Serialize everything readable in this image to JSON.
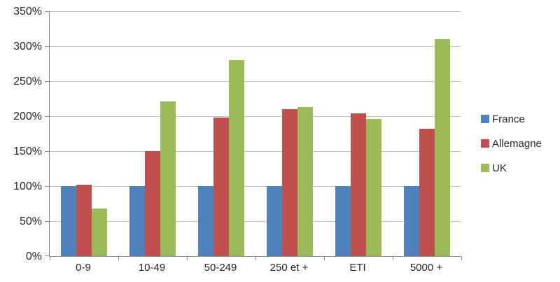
{
  "chart_data": {
    "type": "bar",
    "title": "",
    "categories": [
      "0-9",
      "10-49",
      "50-249",
      "250 et +",
      "ETI",
      "5000 +"
    ],
    "series": [
      {
        "name": "France",
        "color": "#4F81BD",
        "values": [
          100,
          100,
          100,
          100,
          100,
          100
        ]
      },
      {
        "name": "Allemagne",
        "color": "#C0504D",
        "values": [
          102,
          150,
          198,
          210,
          204,
          182
        ]
      },
      {
        "name": "UK",
        "color": "#9BBB59",
        "values": [
          68,
          221,
          280,
          213,
          196,
          310
        ]
      }
    ],
    "ylim": [
      0,
      350
    ],
    "yticks": [
      {
        "label": "0%",
        "value": 0
      },
      {
        "label": "50%",
        "value": 50
      },
      {
        "label": "100%",
        "value": 100
      },
      {
        "label": "150%",
        "value": 150
      },
      {
        "label": "200%",
        "value": 200
      },
      {
        "label": "250%",
        "value": 250
      },
      {
        "label": "300%",
        "value": 300
      },
      {
        "label": "350%",
        "value": 350
      }
    ],
    "grid": true,
    "legend_position": "right",
    "xlabel": "",
    "ylabel": ""
  },
  "colors": {
    "gridline": "#C3C3C3",
    "axis": "#8E8E8E",
    "text": "#262626",
    "background": "#FFFFFF"
  }
}
